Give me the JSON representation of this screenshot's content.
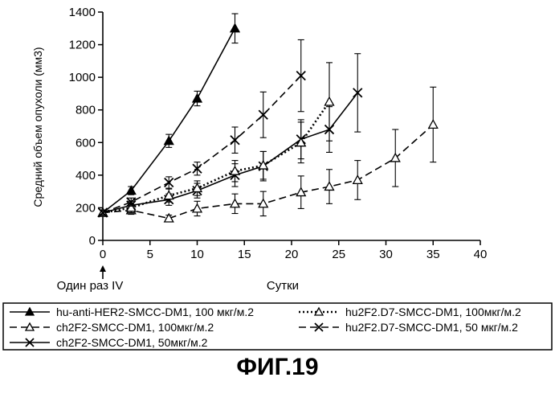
{
  "figure_caption": "ФИГ.19",
  "chart_data": {
    "type": "line",
    "title": "",
    "ylabel": "Средний объем опухоли (мм3)",
    "xlabel": "Сутки",
    "dosing_annotation": "Один раз IV",
    "xlim": [
      0,
      40
    ],
    "ylim": [
      0,
      1400
    ],
    "x_ticks": [
      0,
      5,
      10,
      15,
      20,
      25,
      30,
      35,
      40
    ],
    "y_ticks": [
      0,
      200,
      400,
      600,
      800,
      1000,
      1200,
      1400
    ],
    "legend_position": "bottom",
    "series": [
      {
        "name": "hu-anti-HER2-SMCC-DM1, 100 мкг/м.2",
        "style": "solid",
        "marker": "filled-triangle",
        "color": "#000000",
        "x": [
          0,
          3,
          7,
          10,
          14
        ],
        "y": [
          170,
          305,
          610,
          870,
          1300
        ],
        "err": [
          15,
          25,
          40,
          45,
          90
        ]
      },
      {
        "name": "ch2F2-SMCC-DM1, 100мкг/м.2",
        "style": "dashed",
        "marker": "open-triangle",
        "color": "#000000",
        "x": [
          0,
          3,
          7,
          10,
          14,
          17,
          21,
          24,
          27,
          31,
          35
        ],
        "y": [
          170,
          185,
          135,
          195,
          225,
          225,
          295,
          330,
          370,
          505,
          710
        ],
        "err": [
          15,
          25,
          20,
          45,
          60,
          75,
          100,
          105,
          120,
          175,
          230
        ]
      },
      {
        "name": "ch2F2-SMCC-DM1, 50мкг/м.2",
        "style": "solid",
        "marker": "x",
        "color": "#000000",
        "x": [
          0,
          3,
          7,
          10,
          14,
          17,
          21,
          24,
          27
        ],
        "y": [
          170,
          215,
          250,
          305,
          400,
          455,
          620,
          680,
          905
        ],
        "err": [
          15,
          25,
          35,
          45,
          70,
          90,
          120,
          140,
          240
        ]
      },
      {
        "name": "hu2F2.D7-SMCC-DM1, 100мкг/м.2",
        "style": "dotted",
        "marker": "open-triangle",
        "color": "#000000",
        "x": [
          0,
          3,
          7,
          10,
          14,
          17,
          21,
          24
        ],
        "y": [
          170,
          200,
          275,
          320,
          425,
          460,
          600,
          850
        ],
        "err": [
          15,
          30,
          40,
          45,
          65,
          85,
          125,
          240
        ]
      },
      {
        "name": "hu2F2.D7-SMCC-DM1, 50 мкг/м.2",
        "style": "dashed",
        "marker": "x",
        "color": "#000000",
        "x": [
          0,
          3,
          7,
          10,
          14,
          17,
          21
        ],
        "y": [
          170,
          235,
          355,
          440,
          615,
          770,
          1010
        ],
        "err": [
          15,
          25,
          35,
          40,
          80,
          140,
          220
        ]
      }
    ]
  }
}
